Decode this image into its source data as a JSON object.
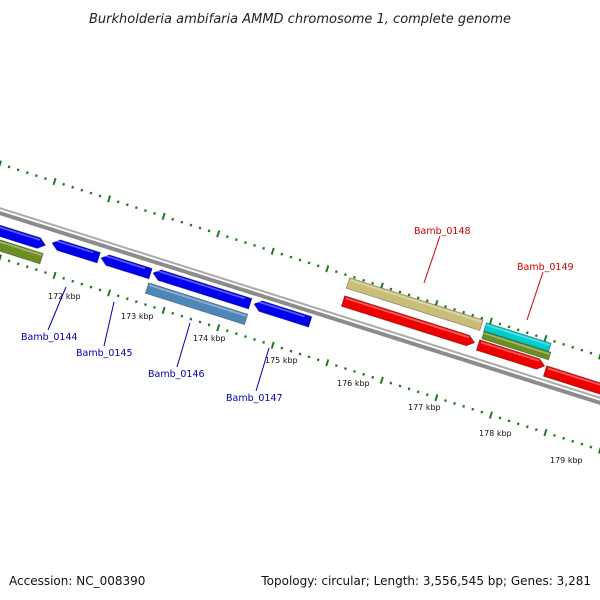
{
  "title": "Burkholderia ambifaria AMMD chromosome 1, complete genome",
  "footer": {
    "accession": "Accession: NC_008390",
    "summary": "Topology: circular; Length: 3,556,545 bp; Genes: 3,281"
  },
  "colors": {
    "backbone": "#888888",
    "tick": "#1e7a1e",
    "forward_gene": "#0000ee",
    "reverse_gene": "#ee0000",
    "gene_label_forward": "#0000aa",
    "gene_label_reverse": "#cc0000",
    "steelblue_gene": "#4f86b8",
    "khaki_gene": "#c8be78",
    "olive_gene": "#6b8e23",
    "cyan_gene": "#00cccc"
  },
  "ticks": {
    "labels": [
      "172 kbp",
      "173 kbp",
      "174 kbp",
      "175 kbp",
      "176 kbp",
      "177 kbp",
      "178 kbp",
      "179 kbp"
    ]
  },
  "genes": {
    "labeled": [
      {
        "name": "Bamb_0144",
        "strand": "forward"
      },
      {
        "name": "Bamb_0145",
        "strand": "forward"
      },
      {
        "name": "Bamb_0146",
        "strand": "forward"
      },
      {
        "name": "Bamb_0147",
        "strand": "forward"
      },
      {
        "name": "Bamb_0148",
        "strand": "reverse"
      },
      {
        "name": "Bamb_0149",
        "strand": "reverse"
      }
    ]
  }
}
